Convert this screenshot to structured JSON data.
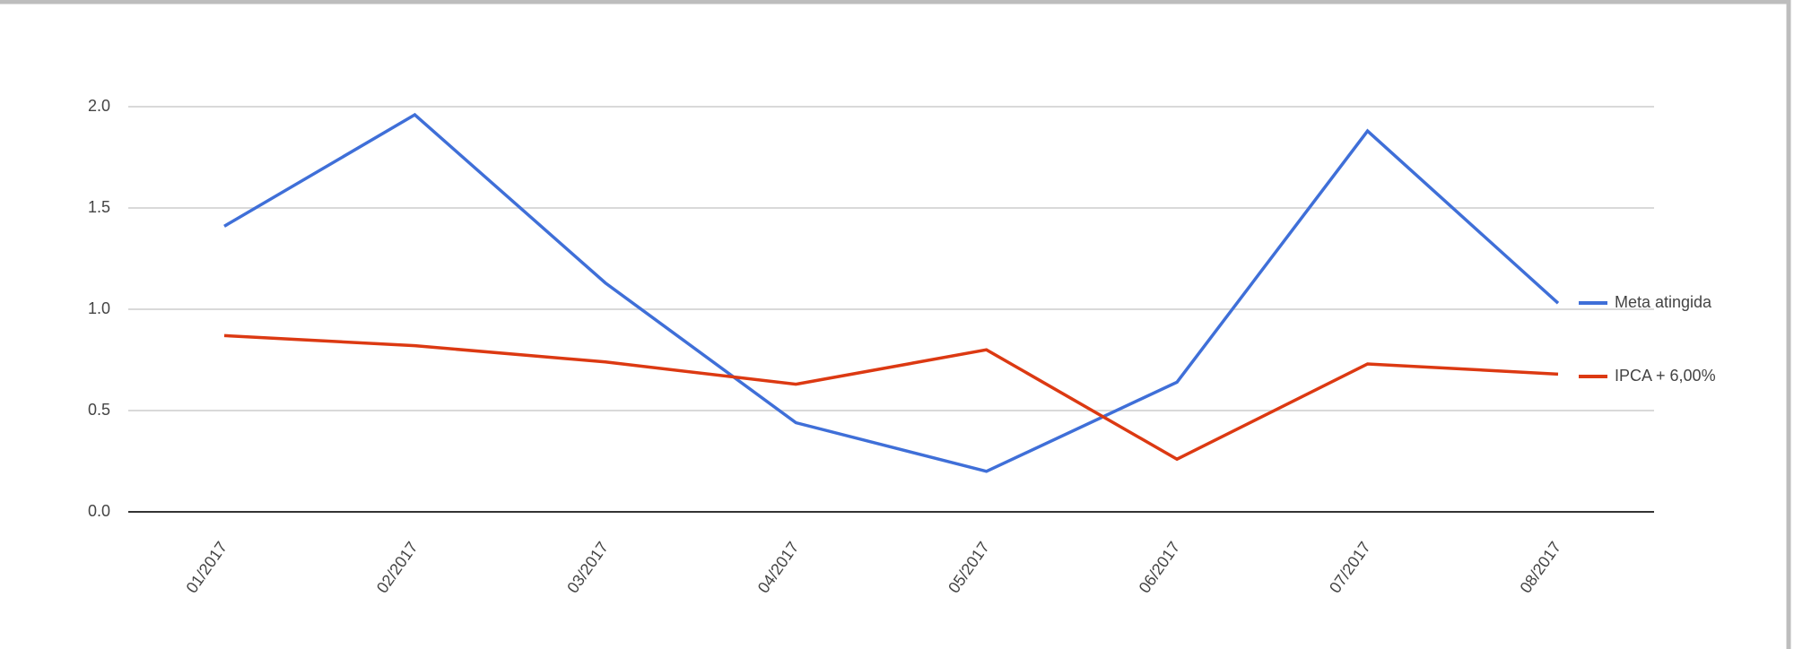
{
  "chart_data": {
    "type": "line",
    "categories": [
      "01/2017",
      "02/2017",
      "03/2017",
      "04/2017",
      "05/2017",
      "06/2017",
      "07/2017",
      "08/2017"
    ],
    "series": [
      {
        "name": "Meta atingida",
        "color": "#3f6fd8",
        "values": [
          1.41,
          1.96,
          1.13,
          0.44,
          0.2,
          0.64,
          1.88,
          1.03
        ]
      },
      {
        "name": "IPCA + 6,00%",
        "color": "#dc3912",
        "values": [
          0.87,
          0.82,
          0.74,
          0.63,
          0.8,
          0.26,
          0.73,
          0.68
        ]
      }
    ],
    "ylim": [
      0,
      2
    ],
    "yticks": [
      {
        "value": 0,
        "label": "0.0"
      },
      {
        "value": 0.5,
        "label": "0.5"
      },
      {
        "value": 1,
        "label": "1.0"
      },
      {
        "value": 1.5,
        "label": "1.5"
      },
      {
        "value": 2,
        "label": "2.0"
      }
    ],
    "grid": true,
    "legend": "right"
  }
}
